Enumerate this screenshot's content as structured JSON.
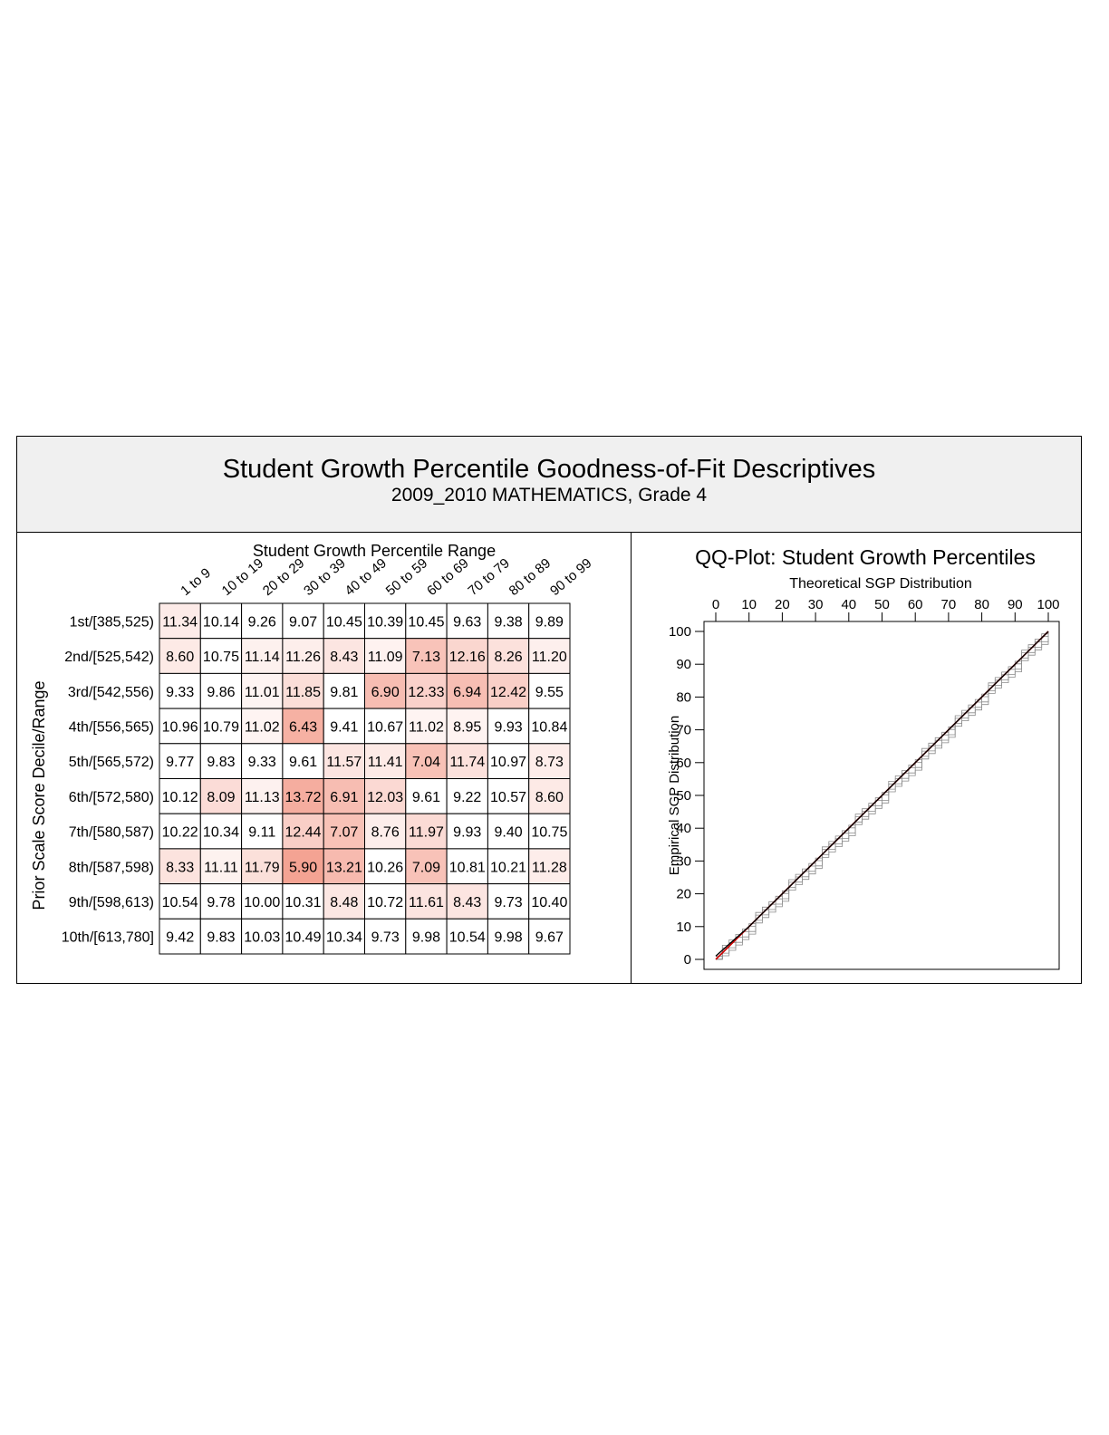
{
  "header": {
    "title": "Student Growth Percentile Goodness-of-Fit Descriptives",
    "subtitle": "2009_2010 MATHEMATICS, Grade 4"
  },
  "chart_data": [
    {
      "type": "heatmap",
      "title": "Student Growth Percentile Range",
      "xlabel": "",
      "ylabel": "Prior Scale Score Decile/Range",
      "columns": [
        "1 to 9",
        "10 to 19",
        "20 to 29",
        "30 to 39",
        "40 to 49",
        "50 to 59",
        "60 to 69",
        "70 to 79",
        "80 to 89",
        "90 to 99"
      ],
      "rows": [
        "1st/[385,525)",
        "2nd/[525,542)",
        "3rd/[542,556)",
        "4th/[556,565)",
        "5th/[565,572)",
        "6th/[572,580)",
        "7th/[580,587)",
        "8th/[587,598)",
        "9th/[598,613)",
        "10th/[613,780]"
      ],
      "values": [
        [
          11.34,
          10.14,
          9.26,
          9.07,
          10.45,
          10.39,
          10.45,
          9.63,
          9.38,
          9.89
        ],
        [
          8.6,
          10.75,
          11.14,
          11.26,
          8.43,
          11.09,
          7.13,
          12.16,
          8.26,
          11.2
        ],
        [
          9.33,
          9.86,
          11.01,
          11.85,
          9.81,
          6.9,
          12.33,
          6.94,
          12.42,
          9.55
        ],
        [
          10.96,
          10.79,
          11.02,
          6.43,
          9.41,
          10.67,
          11.02,
          8.95,
          9.93,
          10.84
        ],
        [
          9.77,
          9.83,
          9.33,
          9.61,
          11.57,
          11.41,
          7.04,
          11.74,
          10.97,
          8.73
        ],
        [
          10.12,
          8.09,
          11.13,
          13.72,
          6.91,
          12.03,
          9.61,
          9.22,
          10.57,
          8.6
        ],
        [
          10.22,
          10.34,
          9.11,
          12.44,
          7.07,
          8.76,
          11.97,
          9.93,
          9.4,
          10.75
        ],
        [
          8.33,
          11.11,
          11.79,
          5.9,
          13.21,
          10.26,
          7.09,
          10.81,
          10.21,
          11.28
        ],
        [
          10.54,
          9.78,
          10.0,
          10.31,
          8.48,
          10.72,
          11.61,
          8.43,
          9.73,
          10.4
        ],
        [
          9.42,
          9.83,
          10.03,
          10.49,
          10.34,
          9.73,
          9.98,
          10.54,
          9.98,
          9.67
        ]
      ],
      "colors": {
        "low": "#ffffff",
        "high": "#f4a090"
      }
    },
    {
      "type": "line",
      "title": "QQ-Plot: Student Growth Percentiles",
      "xlabel": "Theoretical SGP Distribution",
      "ylabel": "Empirical SGP Distribution",
      "xlim": [
        0,
        100
      ],
      "ylim": [
        0,
        100
      ],
      "xticks": [
        "0",
        "10",
        "20",
        "30",
        "40",
        "50",
        "60",
        "70",
        "80",
        "90",
        "100"
      ],
      "yticks": [
        "0",
        "10",
        "20",
        "30",
        "40",
        "50",
        "60",
        "70",
        "80",
        "90",
        "100"
      ],
      "x_axis_position": "top",
      "series": [
        {
          "role": "reference",
          "x": [
            0,
            100
          ],
          "y": [
            0,
            100
          ],
          "color": "#cc0000"
        },
        {
          "role": "empirical",
          "x": [
            0,
            10,
            20,
            30,
            40,
            50,
            60,
            70,
            80,
            90,
            100
          ],
          "y": [
            1,
            10,
            20,
            30,
            40,
            50,
            60,
            70,
            80,
            90,
            100
          ],
          "color": "#000000"
        }
      ]
    }
  ]
}
